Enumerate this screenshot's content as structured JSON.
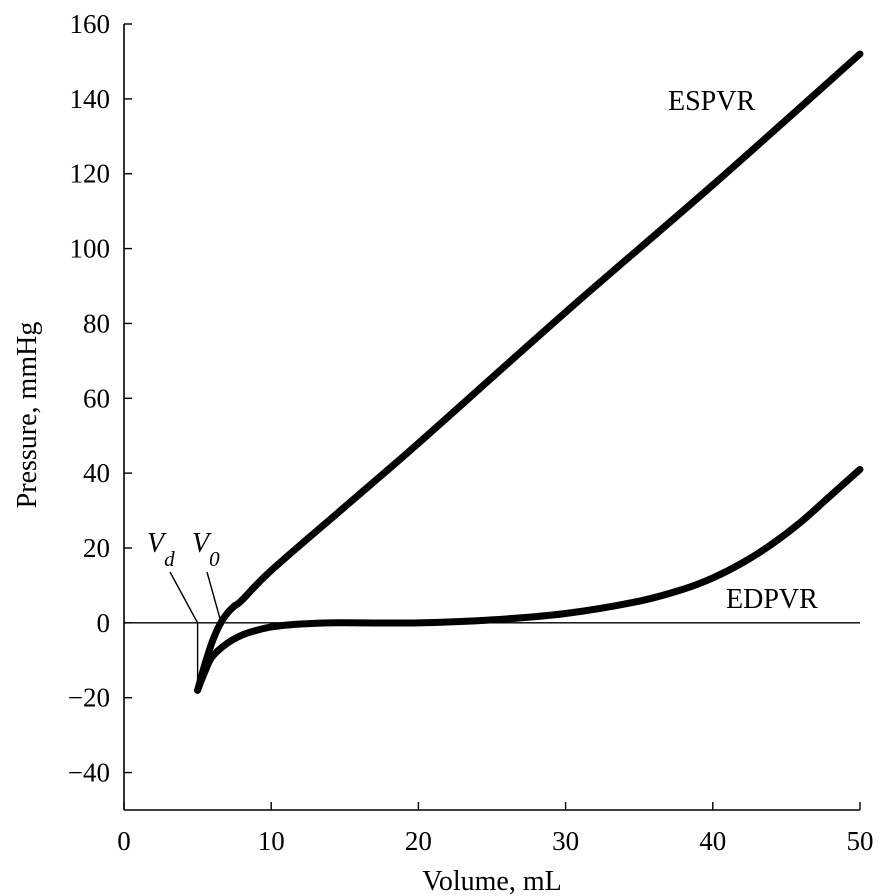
{
  "chart_data": {
    "type": "line",
    "title": "",
    "xlabel": "Volume, mL",
    "ylabel": "Pressure, mmHg",
    "xlim": [
      0,
      50
    ],
    "ylim": [
      -50,
      160
    ],
    "x_ticks": [
      0,
      10,
      20,
      30,
      40,
      50
    ],
    "y_ticks": [
      -40,
      -20,
      0,
      20,
      40,
      60,
      80,
      100,
      120,
      140,
      160
    ],
    "y_tick_labels": [
      "−40",
      "−20",
      "0",
      "20",
      "40",
      "60",
      "80",
      "100",
      "120",
      "140",
      "160"
    ],
    "grid": false,
    "reference_line": {
      "y": 0
    },
    "series": [
      {
        "name": "ESPVR",
        "x": [
          5,
          5.5,
          6,
          6.5,
          7,
          7.5,
          8,
          10,
          15,
          20,
          30,
          40,
          50
        ],
        "y": [
          -18,
          -11,
          -5,
          -0.5,
          2.5,
          4.5,
          6,
          14,
          31,
          48,
          83,
          117,
          152
        ]
      },
      {
        "name": "EDPVR",
        "x": [
          5,
          5.5,
          6,
          7,
          8,
          9,
          10,
          11,
          12,
          14,
          16,
          20,
          25,
          30,
          35,
          38,
          40,
          42,
          44,
          46,
          48,
          50
        ],
        "y": [
          -18,
          -13,
          -9,
          -5.5,
          -3.3,
          -2,
          -1.1,
          -0.6,
          -0.3,
          0,
          0,
          0,
          0.8,
          2.5,
          5.8,
          9,
          12,
          16,
          21,
          27,
          34,
          41
        ]
      }
    ],
    "annotations": {
      "vd": {
        "label": "V",
        "sub": "d",
        "x": 5
      },
      "v0": {
        "label": "V",
        "sub": "0",
        "x": 6.6
      }
    }
  }
}
